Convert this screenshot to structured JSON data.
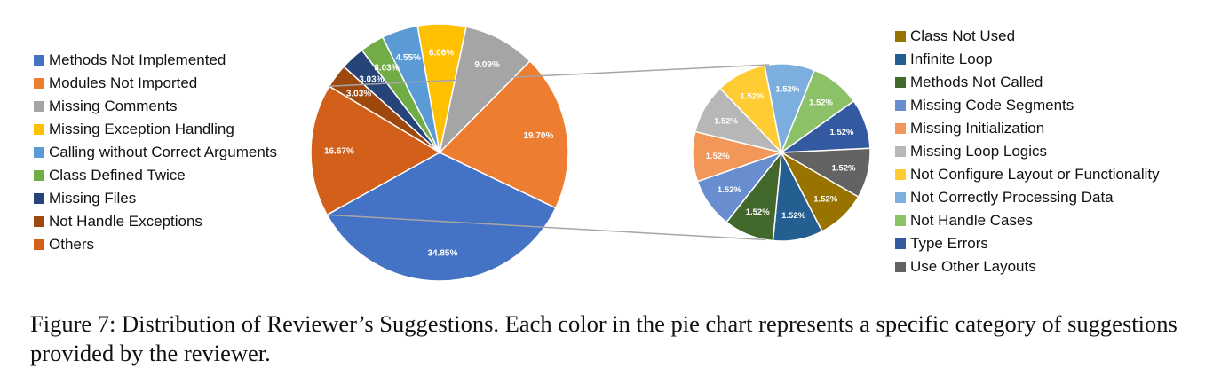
{
  "chart_data": [
    {
      "type": "pie",
      "legend_position": "left",
      "slices": [
        {
          "label": "Methods Not Implemented",
          "value": 34.85,
          "value_label": "34.85%",
          "color": "#4472C4"
        },
        {
          "label": "Modules Not Imported",
          "value": 19.7,
          "value_label": "19.70%",
          "color": "#ED7D31"
        },
        {
          "label": "Missing Comments",
          "value": 9.09,
          "value_label": "9.09%",
          "color": "#A5A5A5"
        },
        {
          "label": "Missing Exception Handling",
          "value": 6.06,
          "value_label": "6.06%",
          "color": "#FFC000"
        },
        {
          "label": "Calling without Correct Arguments",
          "value": 4.55,
          "value_label": "4.55%",
          "color": "#5B9BD5"
        },
        {
          "label": "Class Defined Twice",
          "value": 3.03,
          "value_label": "3.03%",
          "color": "#70AD47"
        },
        {
          "label": "Missing Files",
          "value": 3.03,
          "value_label": "3.03%",
          "color": "#264478"
        },
        {
          "label": "Not Handle Exceptions",
          "value": 3.03,
          "value_label": "3.03%",
          "color": "#9E480E"
        },
        {
          "label": "Others",
          "value": 16.67,
          "value_label": "16.67%",
          "color": "#D2601A"
        }
      ]
    },
    {
      "type": "pie",
      "breakdown_of": "Others",
      "legend_position": "right",
      "slices": [
        {
          "label": "Class Not Used",
          "value": 1.52,
          "value_label": "1.52%",
          "color": "#997300"
        },
        {
          "label": "Infinite Loop",
          "value": 1.52,
          "value_label": "1.52%",
          "color": "#255E91"
        },
        {
          "label": "Methods Not Called",
          "value": 1.52,
          "value_label": "1.52%",
          "color": "#43682B"
        },
        {
          "label": "Missing Code Segments",
          "value": 1.52,
          "value_label": "1.52%",
          "color": "#698ED0"
        },
        {
          "label": "Missing Initialization",
          "value": 1.52,
          "value_label": "1.52%",
          "color": "#F1975A"
        },
        {
          "label": "Missing Loop Logics",
          "value": 1.52,
          "value_label": "1.52%",
          "color": "#B7B7B7"
        },
        {
          "label": "Not Configure Layout or Functionality",
          "value": 1.52,
          "value_label": "1.52%",
          "color": "#FFCD33"
        },
        {
          "label": "Not Correctly Processing Data",
          "value": 1.52,
          "value_label": "1.52%",
          "color": "#7CAFDD"
        },
        {
          "label": "Not Handle Cases",
          "value": 1.52,
          "value_label": "1.52%",
          "color": "#8CC168"
        },
        {
          "label": "Type Errors",
          "value": 1.52,
          "value_label": "1.52%",
          "color": "#335AA1"
        },
        {
          "label": "Use Other Layouts",
          "value": 1.52,
          "value_label": "1.52%",
          "color": "#636363"
        }
      ]
    }
  ],
  "caption": "Figure 7: Distribution of Reviewer’s Suggestions. Each color in the pie chart represents a specific category of suggestions provided by the reviewer."
}
